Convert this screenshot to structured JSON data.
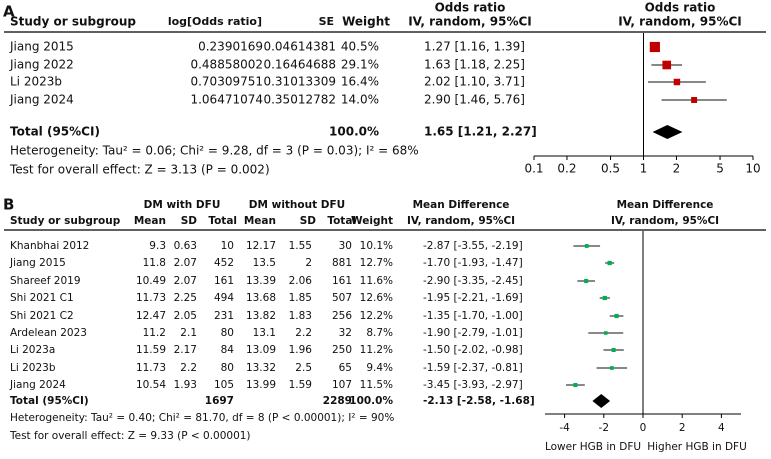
{
  "chart_data": [
    {
      "type": "forest",
      "panel_label": "A",
      "columns": {
        "study": "Study or subgroup",
        "log_or": "log[Odds ratio]",
        "se": "SE",
        "weight": "Weight"
      },
      "effect_title": "Odds ratio",
      "effect_subtitle": "IV, random, 95%CI",
      "plot_title": "Odds ratio",
      "plot_subtitle": "IV, random, 95%CI",
      "studies": [
        "Jiang 2015",
        "Jiang 2022",
        "Li 2023b",
        "Jiang 2024"
      ],
      "log_or": [
        0.2390169,
        0.48858002,
        0.70309751,
        1.06471074
      ],
      "se": [
        0.04614381,
        0.16464688,
        0.31013309,
        0.35012782
      ],
      "weights": [
        40.5,
        29.1,
        16.4,
        14.0
      ],
      "weight_labels": [
        "40.5%",
        "29.1%",
        "16.4%",
        "14.0%"
      ],
      "values": [
        1.27,
        1.63,
        2.02,
        2.9
      ],
      "lower": [
        1.16,
        1.18,
        1.1,
        1.46
      ],
      "upper": [
        1.39,
        2.25,
        3.71,
        5.76
      ],
      "value_labels": [
        "1.27 [1.16, 1.39]",
        "1.63 [1.18, 2.25]",
        "2.02 [1.10, 3.71]",
        "2.90 [1.46, 5.76]"
      ],
      "color": "#c00000",
      "total": {
        "label": "Total (95%CI)",
        "weight_label": "100.0%",
        "value": 1.65,
        "lower": 1.21,
        "upper": 2.27,
        "value_label": "1.65 [1.21, 2.27]"
      },
      "heterogeneity": "Heterogeneity: Tau² = 0.06; Chi² = 9.28, df = 3 (P = 0.03); I² = 68%",
      "overall_effect": "Test for overall effect: Z = 3.13 (P = 0.002)",
      "log_scale": true,
      "reference_line": 1,
      "xlim": [
        0.1,
        10
      ],
      "xticks": [
        0.1,
        0.2,
        0.5,
        1,
        2,
        5,
        10
      ]
    },
    {
      "type": "forest",
      "panel_label": "B",
      "groups": [
        "DM with DFU",
        "DM without DFU"
      ],
      "columns": {
        "study": "Study or subgroup",
        "mean": "Mean",
        "sd": "SD",
        "total": "Total",
        "weight": "Weight"
      },
      "effect_title": "Mean Difference",
      "effect_subtitle": "IV, random, 95%CI",
      "plot_title": "Mean Difference",
      "plot_subtitle": "IV, random, 95%CI",
      "studies": [
        "Khanbhai 2012",
        "Jiang 2015",
        "Shareef 2019",
        "Shi 2021 C1",
        "Shi 2021 C2",
        "Ardelean 2023",
        "Li 2023a",
        "Li 2023b",
        "Jiang 2024"
      ],
      "exp_mean": [
        9.3,
        11.8,
        10.49,
        11.73,
        12.47,
        11.2,
        11.59,
        11.73,
        10.54
      ],
      "exp_sd": [
        0.63,
        2.07,
        2.07,
        2.25,
        2.05,
        2.1,
        2.17,
        2.2,
        1.93
      ],
      "exp_n": [
        10,
        452,
        161,
        494,
        231,
        80,
        84,
        80,
        105
      ],
      "ctl_mean": [
        12.17,
        13.5,
        13.39,
        13.68,
        13.82,
        13.1,
        13.09,
        13.32,
        13.99
      ],
      "ctl_sd": [
        1.55,
        2,
        2.06,
        1.85,
        1.83,
        2.2,
        1.96,
        2.5,
        1.59
      ],
      "ctl_n": [
        30,
        881,
        161,
        507,
        256,
        32,
        250,
        65,
        107
      ],
      "weights": [
        10.1,
        12.7,
        11.6,
        12.6,
        12.2,
        8.7,
        11.2,
        9.4,
        11.5
      ],
      "weight_labels": [
        "10.1%",
        "12.7%",
        "11.6%",
        "12.6%",
        "12.2%",
        "8.7%",
        "11.2%",
        "9.4%",
        "11.5%"
      ],
      "values": [
        -2.87,
        -1.7,
        -2.9,
        -1.95,
        -1.35,
        -1.9,
        -1.5,
        -1.59,
        -3.45
      ],
      "lower": [
        -3.55,
        -1.93,
        -3.35,
        -2.21,
        -1.7,
        -2.79,
        -2.02,
        -2.37,
        -3.93
      ],
      "upper": [
        -2.19,
        -1.47,
        -2.45,
        -1.69,
        -1.0,
        -1.01,
        -0.98,
        -0.81,
        -2.97
      ],
      "value_labels": [
        "-2.87 [-3.55, -2.19]",
        "-1.70 [-1.93, -1.47]",
        "-2.90 [-3.35, -2.45]",
        "-1.95 [-2.21, -1.69]",
        "-1.35 [-1.70, -1.00]",
        "-1.90 [-2.79, -1.01]",
        "-1.50 [-2.02, -0.98]",
        "-1.59 [-2.37, -0.81]",
        "-3.45 [-3.93, -2.97]"
      ],
      "color": "#00b050",
      "total": {
        "label": "Total (95%CI)",
        "exp_n": 1697,
        "ctl_n": 2289,
        "weight_label": "100.0%",
        "value": -2.13,
        "lower": -2.58,
        "upper": -1.68,
        "value_label": "-2.13 [-2.58, -1.68]"
      },
      "heterogeneity": "Heterogeneity: Tau² = 0.40; Chi² = 81.70, df = 8 (P < 0.00001); I² = 90%",
      "overall_effect": "Test for overall effect: Z = 9.33 (P < 0.00001)",
      "log_scale": false,
      "reference_line": 0,
      "xlim": [
        -5,
        5
      ],
      "xticks": [
        -4,
        -2,
        0,
        2,
        4
      ],
      "axis_labels": [
        "Lower HGB in DFU",
        "Higher HGB in DFU"
      ]
    }
  ]
}
